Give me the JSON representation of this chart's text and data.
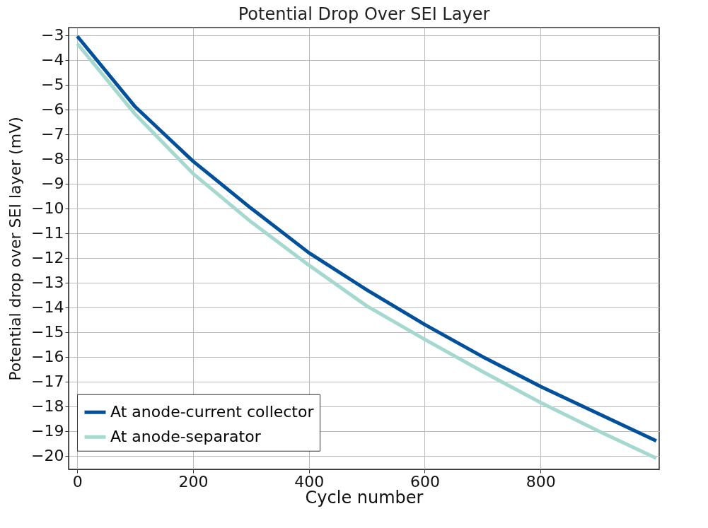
{
  "chart_data": {
    "type": "line",
    "title": "Potential Drop Over SEI Layer",
    "xlabel": "Cycle number",
    "ylabel": "Potential drop over SEI layer (mV)",
    "x": [
      0,
      100,
      200,
      300,
      400,
      500,
      600,
      700,
      800,
      900,
      1000
    ],
    "series": [
      {
        "name": "At anode-current collector",
        "color": "#00509c",
        "values": [
          -3.05,
          -5.9,
          -8.1,
          -10.0,
          -11.8,
          -13.3,
          -14.7,
          -16.0,
          -17.2,
          -18.3,
          -19.4
        ]
      },
      {
        "name": "At anode-separator",
        "color": "#a5d8cf",
        "values": [
          -3.35,
          -6.2,
          -8.6,
          -10.55,
          -12.3,
          -13.95,
          -15.3,
          -16.6,
          -17.85,
          -19.0,
          -20.1
        ]
      }
    ],
    "xlim": [
      -15,
      1005
    ],
    "xticks": [
      0,
      200,
      400,
      600,
      800
    ],
    "ylim": [
      -20.55,
      -2.7
    ],
    "yticks": [
      -3,
      -4,
      -5,
      -6,
      -7,
      -8,
      -9,
      -10,
      -11,
      -12,
      -13,
      -14,
      -15,
      -16,
      -17,
      -18,
      -19,
      -20
    ],
    "grid": true,
    "legend": "bottom left",
    "marker": "none",
    "line_style": "solid"
  }
}
